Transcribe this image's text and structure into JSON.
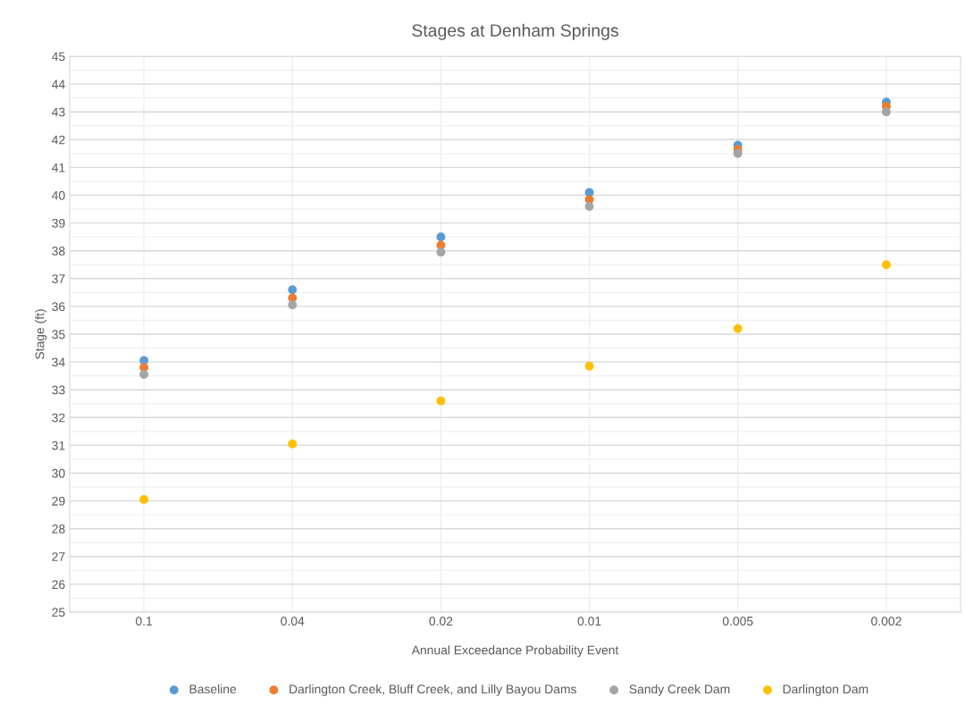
{
  "chart_data": {
    "type": "scatter",
    "title": "Stages at Denham Springs",
    "xlabel": "Annual Exceedance Probability Event",
    "ylabel": "Stage (ft)",
    "categories": [
      "0.1",
      "0.04",
      "0.02",
      "0.01",
      "0.005",
      "0.002"
    ],
    "series": [
      {
        "name": "Baseline",
        "color": "#5b9bd5",
        "values": [
          34.05,
          36.6,
          38.5,
          40.1,
          41.8,
          43.35
        ]
      },
      {
        "name": "Darlington Creek, Bluff Creek, and Lilly Bayou Dams",
        "color": "#ed7d31",
        "values": [
          33.8,
          36.3,
          38.2,
          39.85,
          41.65,
          43.2
        ]
      },
      {
        "name": "Sandy Creek Dam",
        "color": "#a5a5a5",
        "values": [
          33.55,
          36.05,
          37.95,
          39.6,
          41.5,
          43.0
        ]
      },
      {
        "name": "Darlington Dam",
        "color": "#ffc000",
        "values": [
          29.05,
          31.05,
          32.6,
          33.85,
          35.2,
          37.5
        ]
      }
    ],
    "ylim": [
      25,
      45
    ],
    "yticks": [
      25,
      26,
      27,
      28,
      29,
      30,
      31,
      32,
      33,
      34,
      35,
      36,
      37,
      38,
      39,
      40,
      41,
      42,
      43,
      44,
      45
    ],
    "grid": true,
    "legend": "bottom",
    "marker": "circle"
  }
}
